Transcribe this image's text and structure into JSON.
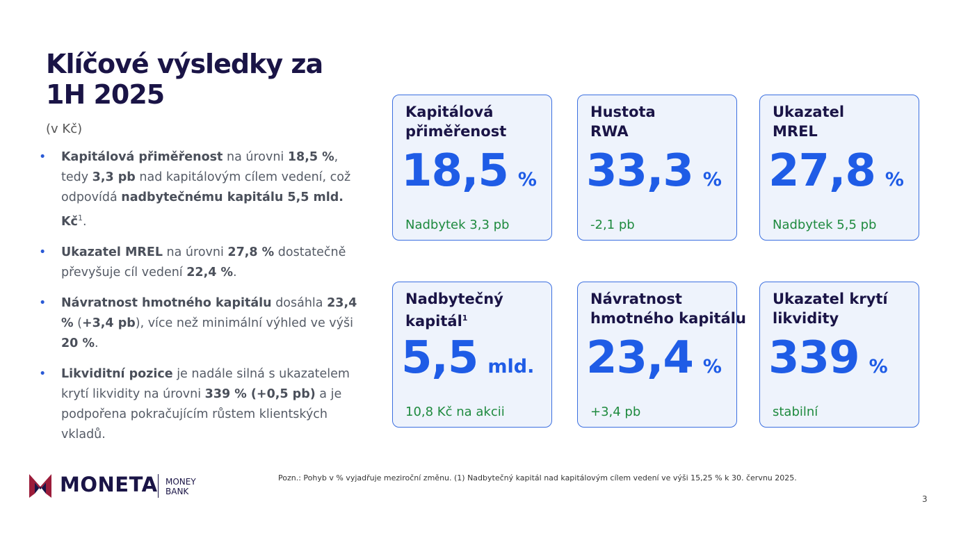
{
  "header": {
    "title_lines": [
      "Klíčové výsledky za",
      "1H 2025"
    ],
    "subtitle": "(v Kč)"
  },
  "bullets": [
    {
      "segments": [
        {
          "text": "Kapitálová přiměřenost",
          "style": "bold"
        },
        {
          "text": " na úrovni ",
          "style": "normal"
        },
        {
          "text": "18,5 %",
          "style": "bold"
        },
        {
          "text": ", tedy ",
          "style": "normal"
        },
        {
          "text": "3,3 pb",
          "style": "bold"
        },
        {
          "text": " nad kapitálovým cílem vedení, což odpovídá ",
          "style": "normal"
        },
        {
          "text": "nadbytečnému kapitálu 5,5 mld. Kč",
          "style": "bold"
        },
        {
          "text": "1",
          "style": "sup"
        },
        {
          "text": ".",
          "style": "normal"
        }
      ]
    },
    {
      "segments": [
        {
          "text": "Ukazatel MREL",
          "style": "bold"
        },
        {
          "text": " na úrovni ",
          "style": "normal"
        },
        {
          "text": "27,8 %",
          "style": "bold"
        },
        {
          "text": " dostatečně převyšuje cíl vedení ",
          "style": "normal"
        },
        {
          "text": "22,4 %",
          "style": "bold"
        },
        {
          "text": ".",
          "style": "normal"
        }
      ]
    },
    {
      "segments": [
        {
          "text": "Návratnost hmotného kapitálu",
          "style": "bold"
        },
        {
          "text": " dosáhla ",
          "style": "normal"
        },
        {
          "text": "23,4 %",
          "style": "bold"
        },
        {
          "text": " (",
          "style": "normal"
        },
        {
          "text": "+3,4 pb",
          "style": "bold"
        },
        {
          "text": "), více než minimální výhled ve výši ",
          "style": "normal"
        },
        {
          "text": "20 %",
          "style": "bold"
        },
        {
          "text": ".",
          "style": "normal"
        }
      ]
    },
    {
      "segments": [
        {
          "text": "Likviditní pozice",
          "style": "bold"
        },
        {
          "text": " je nadále silná s ukazatelem krytí likvidity na úrovni ",
          "style": "normal"
        },
        {
          "text": "339 % (+0,5 pb)",
          "style": "bold"
        },
        {
          "text": " a je podpořena pokračujícím růstem klientských vkladů.",
          "style": "normal"
        }
      ]
    }
  ],
  "cards": [
    {
      "label_lines": [
        "Kapitálová",
        "přiměřenost"
      ],
      "value": "18,5",
      "unit": "%",
      "note": "Nadbytek 3,3 pb"
    },
    {
      "label_lines": [
        "Hustota",
        "RWA"
      ],
      "value": "33,3",
      "unit": "%",
      "note": "-2,1 pb"
    },
    {
      "label_lines": [
        "Ukazatel",
        "MREL"
      ],
      "value": "27,8",
      "unit": "%",
      "note": "Nadbytek 5,5 pb"
    },
    {
      "label_lines": [
        "Nadbytečný",
        "kapitál"
      ],
      "label_sup": "1",
      "value": "5,5",
      "unit": "mld.",
      "note": "10,8 Kč na akcii"
    },
    {
      "label_lines": [
        "Návratnost",
        "hmotného kapitálu"
      ],
      "value": "23,4",
      "unit": "%",
      "note": "+3,4 pb"
    },
    {
      "label_lines": [
        "Ukazatel krytí",
        "likvidity"
      ],
      "value": "339",
      "unit": "%",
      "note": "stabilní"
    }
  ],
  "footer": {
    "brand": "MONETA",
    "brand_sub_lines": [
      "MONEY",
      "BANK"
    ],
    "note": "Pozn.: Pohyb v % vyjadřuje meziroční změnu. (1) Nadbytečný kapitál nad kapitálovým cílem vedení ve výši 15,25 % k 30. červnu 2025.",
    "page": "3"
  }
}
